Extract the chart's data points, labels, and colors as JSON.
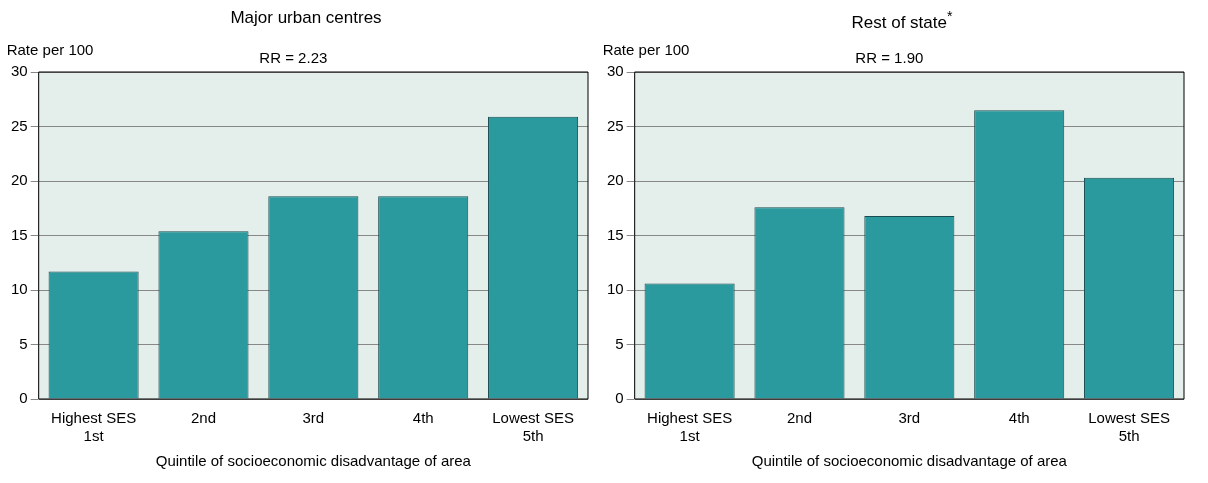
{
  "chart_data": [
    {
      "type": "bar",
      "title": "Major urban centres",
      "ylabel": "Rate per 100",
      "xlabel": "Quintile of socioeconomic disadvantage of area",
      "annotations": [
        "RR = 2.23"
      ],
      "categories": [
        "Highest SES\n1st",
        "2nd",
        "3rd",
        "4th",
        "Lowest SES\n5th"
      ],
      "values": [
        11.7,
        15.4,
        18.6,
        18.6,
        25.9
      ],
      "color": "#2a9a9e",
      "ylim": [
        0,
        30
      ],
      "yticks": [
        0,
        5,
        10,
        15,
        20,
        25,
        30
      ],
      "grid": "y"
    },
    {
      "type": "bar",
      "title": "Rest of state$^{*}$",
      "ylabel": "Rate per 100",
      "xlabel": "Quintile of socioeconomic disadvantage of area",
      "annotations": [
        "RR = 1.90"
      ],
      "categories": [
        "Highest SES\n1st",
        "2nd",
        "3rd",
        "4th",
        "Lowest SES\n5th"
      ],
      "values": [
        10.6,
        17.6,
        16.8,
        26.5,
        20.3
      ],
      "color": "#2a9a9e",
      "ylim": [
        0,
        30
      ],
      "yticks": [
        0,
        5,
        10,
        15,
        20,
        25,
        30
      ],
      "grid": "y"
    }
  ]
}
